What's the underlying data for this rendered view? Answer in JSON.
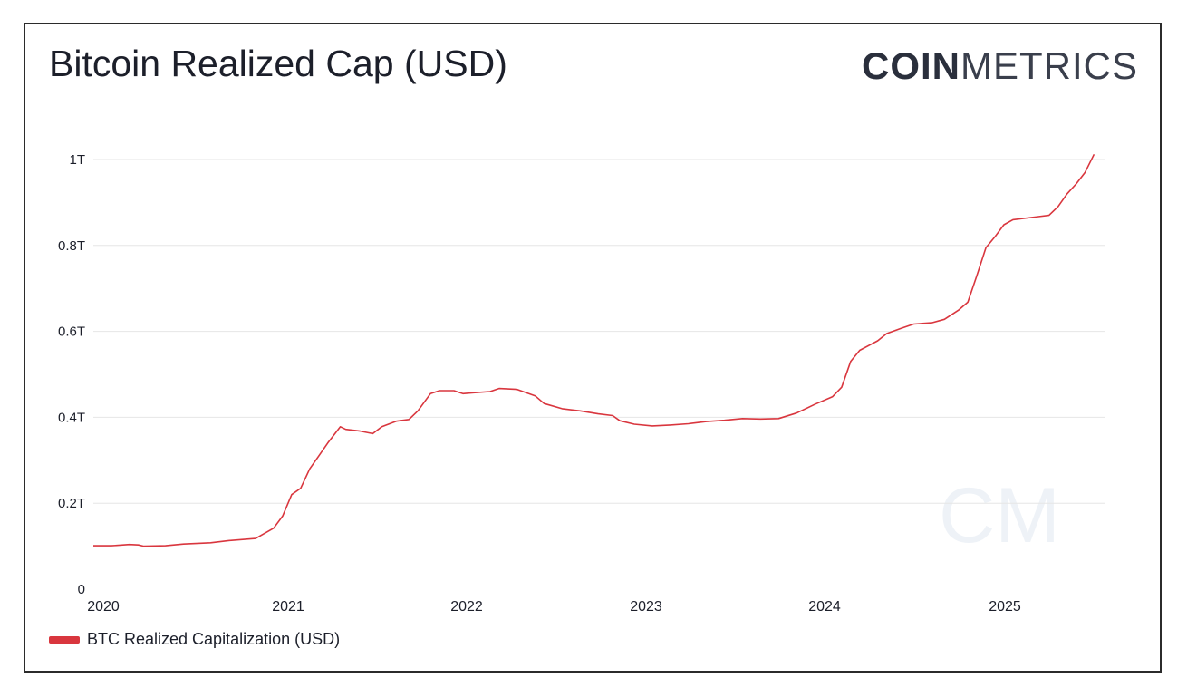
{
  "header": {
    "title": "Bitcoin Realized Cap (USD)",
    "logo_strong": "COIN",
    "logo_light": "METRICS"
  },
  "colors": {
    "series": "#d9363e",
    "grid": "#e6e6e6",
    "text": "#1c1f2a",
    "frame": "#2b2b2b"
  },
  "legend": {
    "label": "BTC Realized Capitalization (USD)",
    "placement": "bottom-left"
  },
  "watermark": "CM",
  "chart_data": {
    "type": "line",
    "title": "Bitcoin Realized Cap (USD)",
    "xlabel": "",
    "ylabel": "",
    "grid": true,
    "legend_position": "bottom-left",
    "ylim": [
      0,
      1000000000000
    ],
    "xlim": [
      2020.0,
      2025.55
    ],
    "y_ticks": [
      {
        "value": 0,
        "label": "0"
      },
      {
        "value": 200000000000,
        "label": "0.2T"
      },
      {
        "value": 400000000000,
        "label": "0.4T"
      },
      {
        "value": 600000000000,
        "label": "0.6T"
      },
      {
        "value": 800000000000,
        "label": "0.8T"
      },
      {
        "value": 1000000000000,
        "label": "1T"
      }
    ],
    "x_ticks": [
      {
        "value": 2020,
        "label": "2020"
      },
      {
        "value": 2021,
        "label": "2021"
      },
      {
        "value": 2022,
        "label": "2022"
      },
      {
        "value": 2023,
        "label": "2023"
      },
      {
        "value": 2024,
        "label": "2024"
      },
      {
        "value": 2025,
        "label": "2025"
      }
    ],
    "series": [
      {
        "name": "BTC Realized Capitalization (USD)",
        "color": "#d9363e",
        "points": [
          [
            2020.0,
            101000000000
          ],
          [
            2020.1,
            101000000000
          ],
          [
            2020.2,
            104000000000
          ],
          [
            2020.25,
            103000000000
          ],
          [
            2020.28,
            100000000000
          ],
          [
            2020.4,
            101000000000
          ],
          [
            2020.5,
            105000000000
          ],
          [
            2020.65,
            108000000000
          ],
          [
            2020.75,
            113000000000
          ],
          [
            2020.9,
            118000000000
          ],
          [
            2021.0,
            142000000000
          ],
          [
            2021.05,
            170000000000
          ],
          [
            2021.1,
            220000000000
          ],
          [
            2021.15,
            235000000000
          ],
          [
            2021.2,
            280000000000
          ],
          [
            2021.25,
            310000000000
          ],
          [
            2021.3,
            340000000000
          ],
          [
            2021.37,
            378000000000
          ],
          [
            2021.4,
            372000000000
          ],
          [
            2021.48,
            368000000000
          ],
          [
            2021.55,
            362000000000
          ],
          [
            2021.6,
            378000000000
          ],
          [
            2021.68,
            391000000000
          ],
          [
            2021.75,
            395000000000
          ],
          [
            2021.8,
            415000000000
          ],
          [
            2021.87,
            455000000000
          ],
          [
            2021.92,
            462000000000
          ],
          [
            2022.0,
            462000000000
          ],
          [
            2022.05,
            455000000000
          ],
          [
            2022.1,
            457000000000
          ],
          [
            2022.2,
            460000000000
          ],
          [
            2022.25,
            467000000000
          ],
          [
            2022.35,
            465000000000
          ],
          [
            2022.45,
            450000000000
          ],
          [
            2022.5,
            432000000000
          ],
          [
            2022.6,
            420000000000
          ],
          [
            2022.7,
            415000000000
          ],
          [
            2022.8,
            408000000000
          ],
          [
            2022.88,
            404000000000
          ],
          [
            2022.92,
            392000000000
          ],
          [
            2023.0,
            384000000000
          ],
          [
            2023.1,
            380000000000
          ],
          [
            2023.2,
            382000000000
          ],
          [
            2023.3,
            385000000000
          ],
          [
            2023.4,
            390000000000
          ],
          [
            2023.5,
            393000000000
          ],
          [
            2023.6,
            397000000000
          ],
          [
            2023.7,
            396000000000
          ],
          [
            2023.8,
            397000000000
          ],
          [
            2023.9,
            410000000000
          ],
          [
            2024.0,
            430000000000
          ],
          [
            2024.1,
            448000000000
          ],
          [
            2024.15,
            470000000000
          ],
          [
            2024.2,
            530000000000
          ],
          [
            2024.25,
            556000000000
          ],
          [
            2024.35,
            578000000000
          ],
          [
            2024.4,
            595000000000
          ],
          [
            2024.48,
            607000000000
          ],
          [
            2024.55,
            617000000000
          ],
          [
            2024.65,
            620000000000
          ],
          [
            2024.72,
            628000000000
          ],
          [
            2024.8,
            650000000000
          ],
          [
            2024.85,
            668000000000
          ],
          [
            2024.9,
            730000000000
          ],
          [
            2024.95,
            795000000000
          ],
          [
            2025.0,
            820000000000
          ],
          [
            2025.05,
            848000000000
          ],
          [
            2025.1,
            860000000000
          ],
          [
            2025.2,
            865000000000
          ],
          [
            2025.3,
            870000000000
          ],
          [
            2025.35,
            890000000000
          ],
          [
            2025.4,
            920000000000
          ],
          [
            2025.45,
            943000000000
          ],
          [
            2025.5,
            970000000000
          ],
          [
            2025.55,
            1012000000000
          ]
        ]
      }
    ]
  }
}
